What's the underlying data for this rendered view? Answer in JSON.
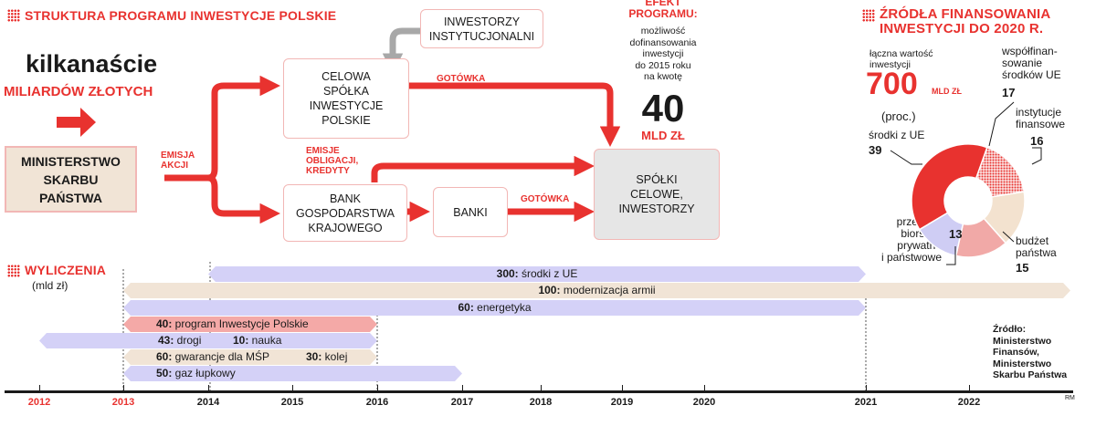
{
  "structure": {
    "title": "STRUKTURA PROGRAMU INWESTYCJE POLSKIE",
    "headline_big": "kilkanaście",
    "headline_red": "MILIARDÓW ZŁOTYCH",
    "ministry": "MINISTERSTWO\nSKARBU\nPAŃSTWA",
    "emisja_akcji": "EMISJA\nAKCJI",
    "investors": "INWESTORZY\nINSTYTUCJONALNI",
    "spv": "CELOWA\nSPÓŁKA\nINWESTYCJE\nPOLSKIE",
    "cash_top": "GOTÓWKA",
    "emisje_obligacji": "EMISJE\nOBLIGACJI,\nKREDYTY",
    "bgk": "BANK\nGOSPODARSTWA\nKRAJOWEGO",
    "banks": "BANKI",
    "cash_bottom": "GOTÓWKA",
    "target": "SPÓŁKI\nCELOWE,\nINWESTORZY",
    "effect_title": "EFEKT\nPROGRAMU:",
    "effect_desc": "możliwość\ndofinansowania\ninwestycji\ndo 2015 roku\nna kwotę",
    "effect_value": "40",
    "effect_unit": "MLD ZŁ"
  },
  "sources": {
    "title": "ŹRÓDŁA FINANSOWANIA\nINWESTYCJI DO 2020 R.",
    "total_label": "łączna wartość\ninwestycji",
    "total_value": "700",
    "total_unit": "MLD ZŁ",
    "proc": "(proc.)",
    "labels": {
      "eu": "środki z UE",
      "eu_value": "39",
      "cofin": "współfinan-\nsowanie\nśrodków UE",
      "cofin_value": "17",
      "inst": "instytucje\nfinansowe",
      "inst_value": "16",
      "budget": "budżet\npaństwa",
      "budget_value": "15",
      "enterprises": "przedsię-\nbiorstwa\nprywatne\ni państwowe",
      "enterprises_value": "13"
    }
  },
  "chart_data": {
    "type": "pie",
    "title": "ŹRÓDŁA FINANSOWANIA INWESTYCJI DO 2020 R.",
    "unit": "(proc.)",
    "categories": [
      "środki z UE",
      "współfinansowanie środków UE",
      "instytucje finansowe",
      "budżet państwa",
      "przedsiębiorstwa prywatne i państwowe"
    ],
    "values": [
      39,
      17,
      16,
      15,
      13
    ],
    "colors": [
      "#e8322f",
      "#e8322f",
      "#f3e2cf",
      "#f1a9a7",
      "#cfcdf4"
    ]
  },
  "calc": {
    "title": "WYLICZENIA",
    "unit": "(mld zł)",
    "bars": [
      {
        "value": "300:",
        "label": "środki z UE"
      },
      {
        "value": "100:",
        "label": "modernizacja armii"
      },
      {
        "value": "60:",
        "label": "energetyka"
      },
      {
        "value": "40:",
        "label": "program Inwestycje Polskie"
      },
      {
        "value": "43:",
        "label": "drogi"
      },
      {
        "value": "10:",
        "label": "nauka"
      },
      {
        "value": "60:",
        "label": "gwarancje dla MŚP"
      },
      {
        "value": "30:",
        "label": "kolej"
      },
      {
        "value": "50:",
        "label": "gaz łupkowy"
      }
    ],
    "years": [
      "2012",
      "2013",
      "2014",
      "2015",
      "2016",
      "2017",
      "2018",
      "2019",
      "2020",
      "2021",
      "2022"
    ],
    "source": "Źródło:\nMinisterstwo\nFinansów,\nMinisterstwo\nSkarbu Państwa",
    "rm": "RM"
  },
  "colors": {
    "red": "#e8322f",
    "pink": "#f2b7b5",
    "lavender": "#d4d1f7",
    "beige": "#f1e4d6",
    "rose": "#f4a9a7",
    "gray": "#e6e6e6"
  }
}
